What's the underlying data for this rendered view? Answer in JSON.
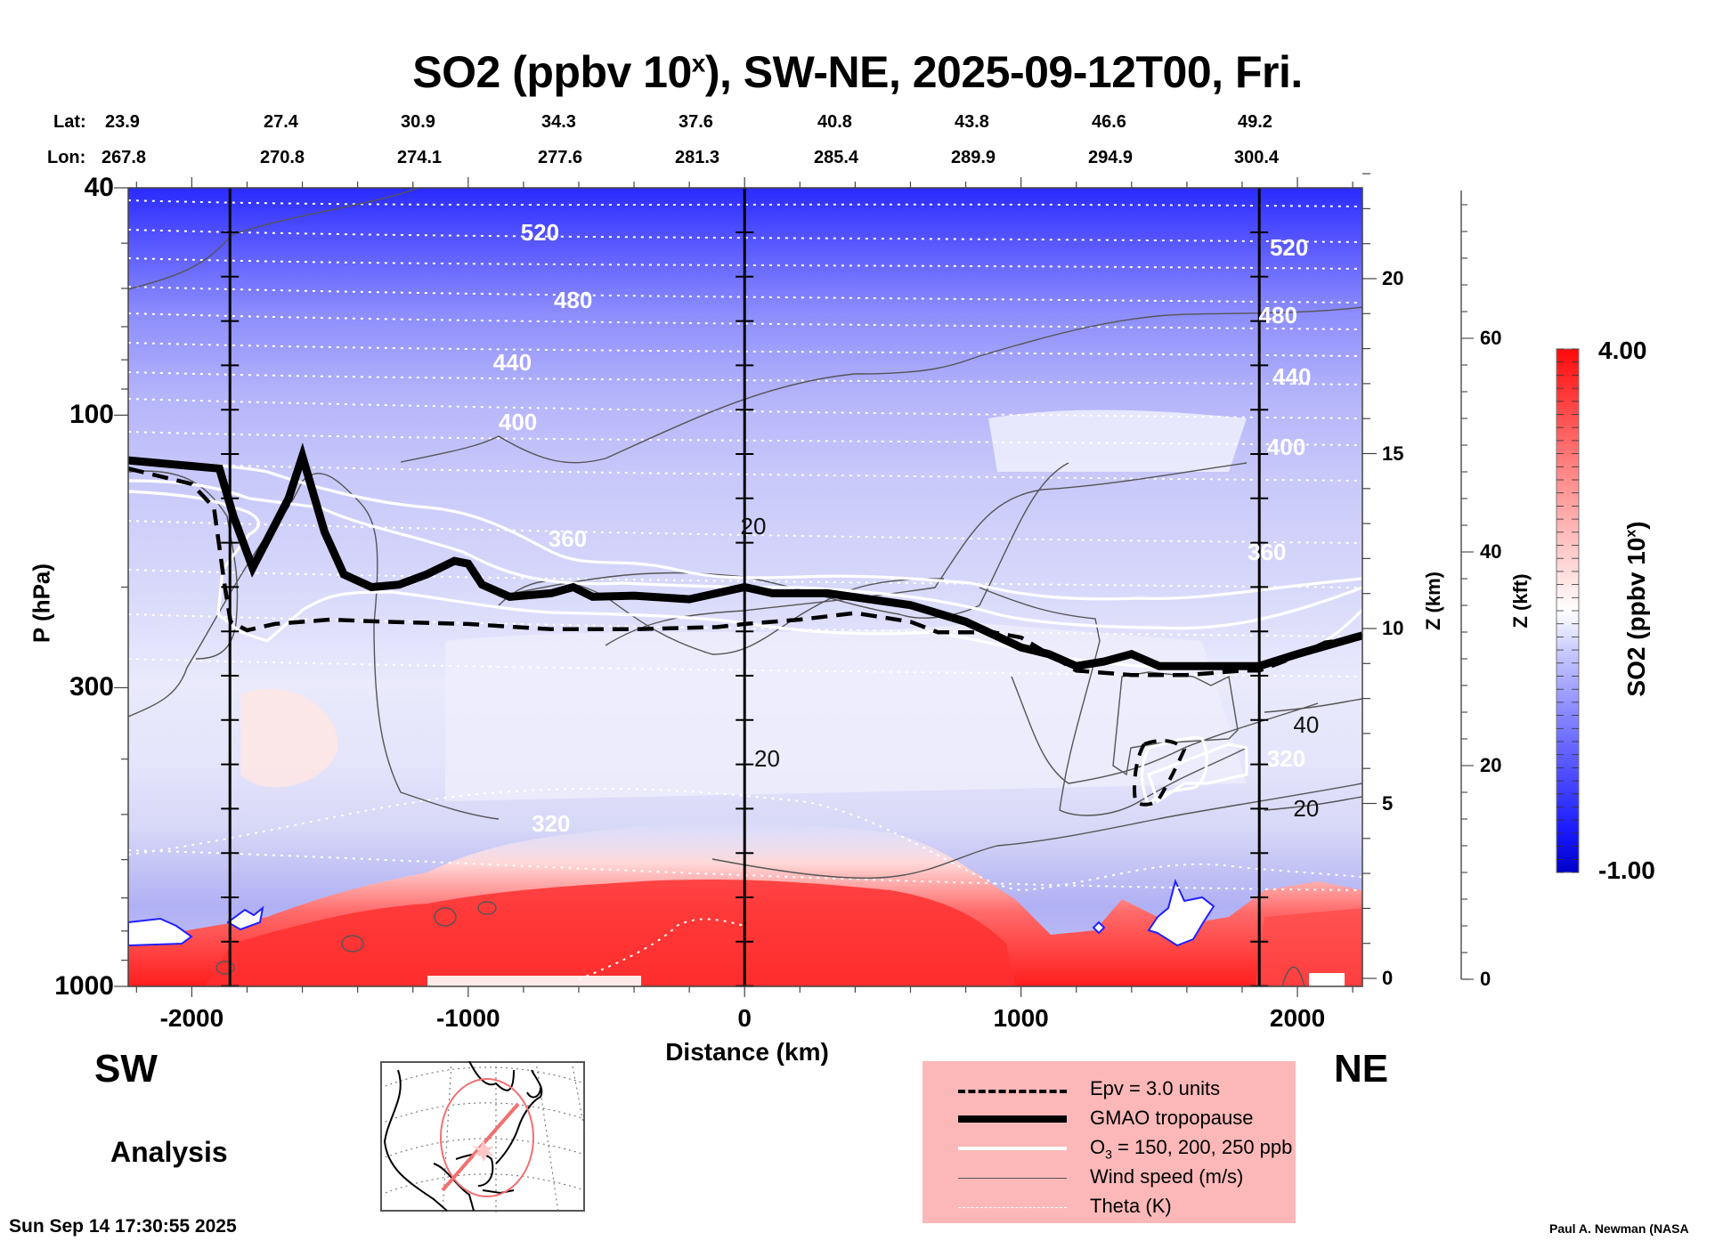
{
  "header": {
    "title_prefix": "SO2 (ppbv 10",
    "title_sup": "x",
    "title_suffix": "), SW-NE, 2025-09-12T00, Fri."
  },
  "latlon": {
    "lat_label": "Lat:",
    "lon_label": "Lon:",
    "lat": [
      "23.9",
      "27.4",
      "30.9",
      "34.3",
      "37.6",
      "40.8",
      "43.8",
      "46.6",
      "49.2"
    ],
    "lon": [
      "267.8",
      "270.8",
      "274.1",
      "277.6",
      "281.3",
      "285.4",
      "289.9",
      "294.9",
      "300.4"
    ]
  },
  "labels": {
    "sw": "SW",
    "ne": "NE",
    "analysis": "Analysis",
    "timestamp": "Sun Sep 14 17:30:55 2025",
    "credit": "Paul A. Newman (NASA"
  },
  "colors": {
    "so2_high": "#ff1010",
    "so2_mid": "#ffffff",
    "so2_low": "#0000d0",
    "legend_bg": "#fcb8b8",
    "map_circle": "#f07070"
  },
  "legend": {
    "items": [
      {
        "label": "Epv = 3.0 units",
        "style": "dashed-thick"
      },
      {
        "label": "GMAO tropopause",
        "style": "solid-heavy"
      },
      {
        "label_prefix": "O",
        "label_sub": "3",
        "label_suffix": " = 150, 200, 250 ppb",
        "style": "solid-white"
      },
      {
        "label": "Wind speed (m/s)",
        "style": "solid-thin"
      },
      {
        "label": "Theta (K)",
        "style": "dotted-white"
      }
    ]
  },
  "chart_data": {
    "type": "heatmap",
    "title": "SO2 (ppbv 10^x), SW-NE, 2025-09-12T00, Fri.",
    "xlabel": "Distance (km)",
    "ylabel": "P (hPa)",
    "y2label": "Z (km)",
    "y3label": "Z (kft)",
    "colorbar_label": "SO2 (ppbv 10^x)",
    "xlim": [
      -2230,
      2235
    ],
    "ylim": [
      1000,
      40
    ],
    "yscale": "log",
    "x_ticks": [
      -2000,
      -1000,
      0,
      1000,
      2000
    ],
    "x_tick_labels": [
      "-2000",
      "-1000",
      "0",
      "1000",
      "2000"
    ],
    "y_ticks": [
      40,
      100,
      300,
      1000
    ],
    "y_tick_labels": [
      "40",
      "100",
      "300",
      "1000"
    ],
    "y2_ticks_km": [
      0,
      5,
      10,
      15,
      20
    ],
    "y2_tick_labels": [
      "0",
      "5",
      "10",
      "15",
      "20"
    ],
    "y3_ticks_kft": [
      0,
      20,
      40,
      60
    ],
    "y3_tick_labels": [
      "0",
      "20",
      "40",
      "60"
    ],
    "colorbar_range": [
      -1.0,
      4.0
    ],
    "colorbar_tick_labels": [
      "4.00",
      "-1.00"
    ],
    "vertical_reference_lines_km": [
      -1862,
      0,
      1862
    ],
    "theta_contours_K": [
      {
        "value": 520,
        "label_at": [
          [
            -720,
            48
          ],
          [
            1990,
            51
          ]
        ]
      },
      {
        "value": 480,
        "label_at": [
          [
            -600,
            63
          ],
          [
            1950,
            67
          ]
        ]
      },
      {
        "value": 440,
        "label_at": [
          [
            -820,
            81
          ],
          [
            2000,
            86
          ]
        ]
      },
      {
        "value": 400,
        "label_at": [
          [
            -800,
            103
          ],
          [
            1980,
            114
          ]
        ]
      },
      {
        "value": 360,
        "label_at": [
          [
            -620,
            165
          ],
          [
            1910,
            174
          ]
        ]
      },
      {
        "value": 320,
        "label_at": [
          [
            -680,
            520
          ],
          [
            1980,
            400
          ]
        ]
      }
    ],
    "wind_speed_contour_labels": [
      {
        "value": 20,
        "at": [
          30,
          157
        ]
      },
      {
        "value": 20,
        "at": [
          80,
          400
        ]
      },
      {
        "value": 40,
        "at": [
          2030,
          350
        ]
      },
      {
        "value": 20,
        "at": [
          2030,
          490
        ]
      }
    ],
    "tropopause_hPa": {
      "x": [
        -2230,
        -1900,
        -1850,
        -1780,
        -1650,
        -1600,
        -1520,
        -1450,
        -1350,
        -1250,
        -1150,
        -1050,
        -1000,
        -950,
        -850,
        -700,
        -620,
        -550,
        -400,
        -200,
        0,
        100,
        300,
        600,
        800,
        1000,
        1100,
        1200,
        1300,
        1400,
        1500,
        1700,
        1862,
        2000,
        2235
      ],
      "y": [
        120,
        124,
        150,
        185,
        140,
        118,
        160,
        190,
        200,
        198,
        190,
        180,
        182,
        198,
        208,
        205,
        200,
        208,
        207,
        210,
        200,
        205,
        205,
        215,
        230,
        255,
        262,
        275,
        270,
        262,
        275,
        275,
        275,
        262,
        243
      ]
    },
    "epv_3_hPa": {
      "x": [
        -2230,
        -2000,
        -1920,
        -1880,
        -1860,
        -1800,
        -1700,
        -1500,
        -1300,
        -1000,
        -700,
        -400,
        -100,
        0,
        200,
        400,
        600,
        700,
        900,
        1000,
        1200,
        1400,
        1600,
        1800,
        1862,
        1950,
        2100,
        2235
      ],
      "y": [
        124,
        132,
        145,
        200,
        230,
        238,
        232,
        228,
        230,
        232,
        237,
        237,
        235,
        232,
        228,
        222,
        230,
        240,
        240,
        245,
        280,
        285,
        285,
        280,
        280,
        270,
        250,
        245
      ]
    },
    "colormap": "blue-white-red diverging",
    "field_description": "SO2 log10 mixing ratio; high (red, ~3-4) in boundary layer below ~700 hPa between -1700 and +1200 km and near NE edge; low (blue, ~-1 to 0) in stratosphere above 60 hPa; near-neutral (white/light) mid-troposphere"
  }
}
